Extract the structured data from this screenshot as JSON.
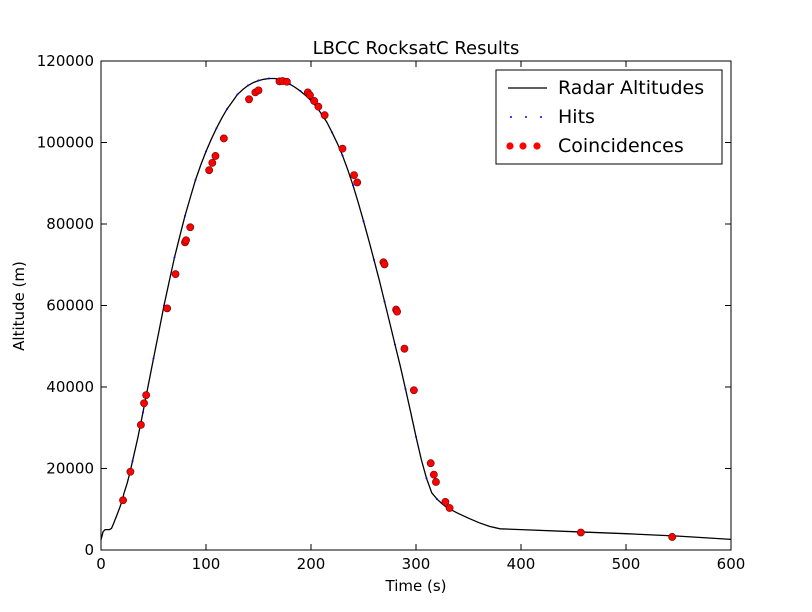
{
  "chart_data": {
    "type": "line",
    "title": "LBCC RocksatC Results",
    "xlabel": "Time (s)",
    "ylabel": "Altitude (m)",
    "xlim": [
      0,
      600
    ],
    "ylim": [
      0,
      120000
    ],
    "xticks": [
      0,
      100,
      200,
      300,
      400,
      500,
      600
    ],
    "yticks": [
      0,
      20000,
      40000,
      60000,
      80000,
      100000,
      120000
    ],
    "grid": false,
    "legend_position": "top-right",
    "series": [
      {
        "name": "Radar Altitudes",
        "style": "line",
        "color": "#000000",
        "x": [
          0,
          2,
          4,
          6,
          8,
          10,
          12,
          15,
          18,
          20,
          22,
          25,
          28,
          30,
          35,
          40,
          45,
          50,
          55,
          60,
          65,
          70,
          75,
          80,
          85,
          90,
          95,
          100,
          105,
          110,
          115,
          120,
          125,
          130,
          135,
          140,
          145,
          150,
          155,
          160,
          165,
          170,
          175,
          180,
          185,
          190,
          195,
          200,
          205,
          210,
          215,
          220,
          225,
          230,
          235,
          240,
          245,
          250,
          255,
          260,
          265,
          270,
          275,
          280,
          285,
          290,
          295,
          300,
          305,
          310,
          315,
          320,
          325,
          330,
          340,
          350,
          360,
          370,
          380,
          400,
          450,
          500,
          550,
          600
        ],
        "y": [
          2500,
          4500,
          5000,
          5000,
          5000,
          5300,
          6500,
          8500,
          10500,
          12000,
          14000,
          16500,
          19500,
          21800,
          27500,
          33800,
          40500,
          47000,
          53500,
          60000,
          66000,
          71800,
          77000,
          82000,
          86500,
          90800,
          94500,
          97800,
          100800,
          103500,
          106000,
          108200,
          110000,
          111800,
          113000,
          114000,
          114700,
          115200,
          115500,
          115700,
          115700,
          115500,
          115000,
          114300,
          113500,
          112600,
          111500,
          110300,
          108800,
          107000,
          105000,
          102500,
          99800,
          96800,
          93300,
          89500,
          85200,
          80700,
          76000,
          71200,
          66200,
          61000,
          55700,
          50400,
          45100,
          39500,
          33700,
          27800,
          22200,
          17600,
          14000,
          12500,
          11300,
          10300,
          9000,
          7800,
          6700,
          5800,
          5200,
          5000,
          4500,
          4000,
          3400,
          2600
        ]
      },
      {
        "name": "Hits",
        "style": "dotted",
        "color": "#0000ff",
        "x": [
          20,
          30,
          40,
          50,
          60,
          70,
          80,
          90,
          100,
          110,
          120,
          130,
          140,
          150,
          160,
          170,
          180,
          190,
          200,
          210,
          220,
          230,
          240,
          250,
          260,
          270,
          280,
          290,
          300,
          310,
          320,
          330
        ],
        "y": [
          12000,
          21800,
          33800,
          47000,
          60000,
          71800,
          82000,
          90800,
          97800,
          103500,
          108200,
          111800,
          114000,
          115200,
          115700,
          115500,
          114300,
          112600,
          110300,
          107000,
          102500,
          96800,
          89500,
          80700,
          71200,
          61000,
          50400,
          39500,
          27800,
          17600,
          12500,
          10300
        ]
      },
      {
        "name": "Coincidences",
        "style": "points",
        "color": "#ff0000",
        "x": [
          21,
          28,
          38,
          41,
          43,
          63,
          71,
          80,
          81,
          85,
          103,
          106,
          109,
          117,
          141,
          147,
          150,
          170,
          173,
          177,
          197,
          199,
          203,
          207,
          213,
          230,
          241,
          244,
          269,
          270,
          281,
          282,
          289,
          298,
          314,
          317,
          319,
          328,
          332,
          457,
          544
        ],
        "y": [
          12200,
          19200,
          30700,
          36000,
          38000,
          59300,
          67700,
          75500,
          76000,
          79200,
          93200,
          95000,
          96700,
          101000,
          110600,
          112300,
          112800,
          115000,
          115100,
          114900,
          112300,
          111600,
          110200,
          108800,
          106700,
          98500,
          92000,
          90200,
          70600,
          70100,
          59000,
          58500,
          49400,
          39200,
          21300,
          18500,
          16700,
          11800,
          10300,
          4300,
          3200
        ]
      }
    ]
  }
}
